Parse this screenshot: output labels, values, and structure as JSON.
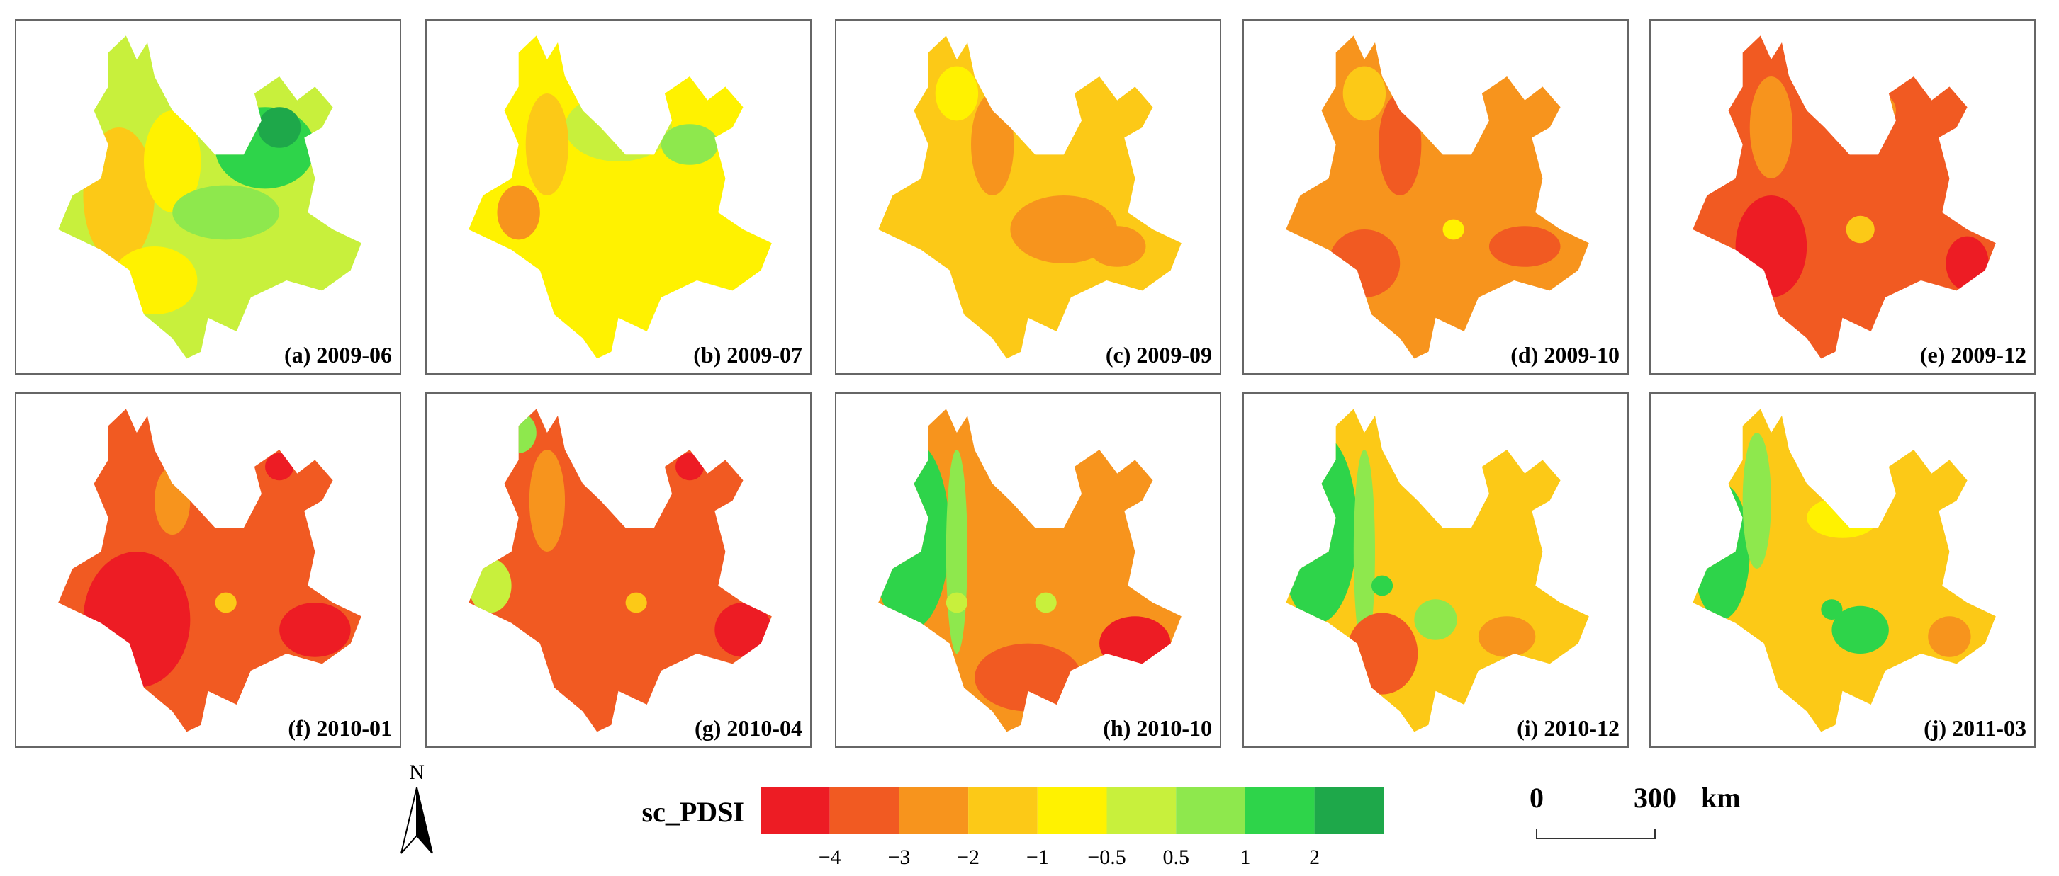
{
  "panels": [
    {
      "label": "(a) 2009-06"
    },
    {
      "label": "(b) 2009-07"
    },
    {
      "label": "(c) 2009-09"
    },
    {
      "label": "(d) 2009-10"
    },
    {
      "label": "(e) 2009-12"
    },
    {
      "label": "(f) 2010-01"
    },
    {
      "label": "(g) 2010-04"
    },
    {
      "label": "(h) 2010-10"
    },
    {
      "label": "(i) 2010-12"
    },
    {
      "label": "(j) 2011-03"
    }
  ],
  "legend": {
    "title": "sc_PDSI",
    "colors": [
      "#ed1c24",
      "#f15a22",
      "#f7941d",
      "#fcc917",
      "#fff200",
      "#c8f03c",
      "#8ee84d",
      "#2ed44a",
      "#1ea84a"
    ],
    "ticks": [
      "−4",
      "−3",
      "−2",
      "−1",
      "−0.5",
      "0.5",
      "1",
      "2"
    ]
  },
  "scale_bar": {
    "start": "0",
    "end": "300",
    "unit": "km"
  },
  "north_label": "N"
}
